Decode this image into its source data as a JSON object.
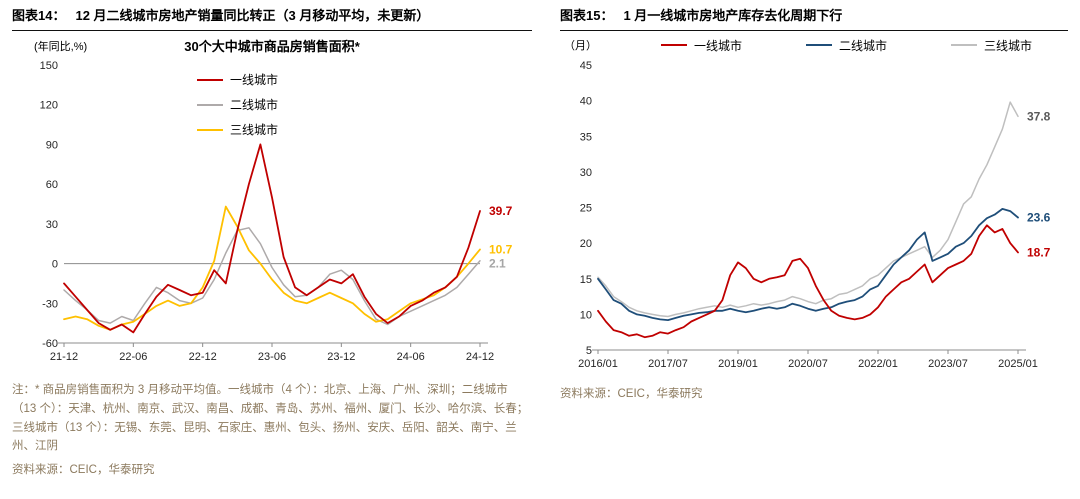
{
  "figure14": {
    "header_label": "图表14：",
    "header_title": "12 月二线城市房地产销量同比转正（3 月移动平均，未更新）",
    "note": "注：* 商品房销售面积为 3 月移动平均值。一线城市（4 个）：北京、上海、广州、深圳；二线城市（13 个）：天津、杭州、南京、武汉、南昌、成都、青岛、苏州、福州、厦门、长沙、哈尔滨、长春；三线城市（13 个）：无锡、东莞、昆明、石家庄、惠州、包头、扬州、安庆、岳阳、韶关、南宁、兰州、江阴",
    "source": "资料来源：CEIC，华泰研究"
  },
  "figure15": {
    "header_label": "图表15：",
    "header_title": "1 月一线城市房地产库存去化周期下行",
    "source": "资料来源：CEIC，华泰研究"
  },
  "colors": {
    "tier1_red": "#C00000",
    "tier2_gray_left": "#AEAAAA",
    "tier3_yellow": "#FFC000",
    "tier2_blue_right": "#1F4E79",
    "tier3_gray_right": "#BFBFBF",
    "axis_gray": "#8C8C8C",
    "note_brown": "#8C7A5E"
  },
  "chart_data": [
    {
      "type": "line",
      "title": "30个大中城市商品房销售面积*",
      "xlabel": "",
      "ylabel": "(年同比,%)",
      "ylim": [
        -60,
        150
      ],
      "yticks": [
        150,
        120,
        90,
        60,
        30,
        0,
        -30,
        -60
      ],
      "zero_line": true,
      "grid": false,
      "legend_position": "top-center-vertical",
      "x_frequency": "monthly",
      "x_range": "2021-12 to 2024-12",
      "xticks": [
        {
          "label": "21-12",
          "index": 0
        },
        {
          "label": "22-06",
          "index": 6
        },
        {
          "label": "22-12",
          "index": 12
        },
        {
          "label": "23-06",
          "index": 18
        },
        {
          "label": "23-12",
          "index": 24
        },
        {
          "label": "24-06",
          "index": 30
        },
        {
          "label": "24-12",
          "index": 36
        }
      ],
      "series": [
        {
          "name": "一线城市",
          "color": "#C00000",
          "stroke_width": 1.8,
          "draw_order": 3,
          "end_label": "39.7",
          "end_label_color": "#C00000",
          "values": [
            -15,
            -25,
            -35,
            -45,
            -50,
            -46,
            -52,
            -38,
            -25,
            -16,
            -20,
            -24,
            -22,
            -5,
            -15,
            25,
            60,
            90,
            50,
            5,
            -18,
            -24,
            -18,
            -12,
            -15,
            -8,
            -25,
            -38,
            -45,
            -40,
            -32,
            -28,
            -22,
            -18,
            -10,
            12,
            39.7
          ]
        },
        {
          "name": "二线城市",
          "color": "#AEAAAA",
          "stroke_width": 1.5,
          "draw_order": 1,
          "end_label": "2.1",
          "end_label_color": "#A6A6A6",
          "values": [
            -20,
            -28,
            -35,
            -43,
            -45,
            -40,
            -43,
            -30,
            -18,
            -22,
            -28,
            -30,
            -26,
            -12,
            8,
            25,
            27,
            15,
            -3,
            -16,
            -25,
            -24,
            -18,
            -8,
            -5,
            -12,
            -28,
            -42,
            -46,
            -40,
            -36,
            -32,
            -28,
            -24,
            -18,
            -8,
            2.1
          ]
        },
        {
          "name": "三线城市",
          "color": "#FFC000",
          "stroke_width": 1.8,
          "draw_order": 2,
          "end_label": "10.7",
          "end_label_color": "#FFC000",
          "values": [
            -42,
            -40,
            -42,
            -47,
            -50,
            -46,
            -44,
            -38,
            -32,
            -28,
            -32,
            -30,
            -18,
            2,
            43,
            28,
            10,
            0,
            -12,
            -22,
            -28,
            -30,
            -26,
            -22,
            -26,
            -30,
            -38,
            -44,
            -42,
            -36,
            -30,
            -27,
            -24,
            -18,
            -10,
            0,
            10.7
          ]
        }
      ]
    },
    {
      "type": "line",
      "title": "",
      "xlabel": "",
      "ylabel": "（月）",
      "ylim": [
        5,
        45
      ],
      "yticks": [
        45,
        40,
        35,
        30,
        25,
        20,
        15,
        10,
        5
      ],
      "zero_line": false,
      "grid": false,
      "legend_position": "top-horizontal",
      "x_frequency": "bimonthly",
      "x_range": "2016/01 to 2025/01",
      "xticks": [
        {
          "label": "2016/01",
          "index": 0
        },
        {
          "label": "2017/07",
          "index": 9
        },
        {
          "label": "2019/01",
          "index": 18
        },
        {
          "label": "2020/07",
          "index": 27
        },
        {
          "label": "2022/01",
          "index": 36
        },
        {
          "label": "2023/07",
          "index": 45
        },
        {
          "label": "2025/01",
          "index": 54
        }
      ],
      "series": [
        {
          "name": "一线城市",
          "color": "#C00000",
          "stroke_width": 1.8,
          "draw_order": 3,
          "end_label": "18.7",
          "end_label_color": "#C00000",
          "values": [
            10.5,
            9.0,
            7.8,
            7.5,
            7.0,
            7.2,
            6.8,
            7.0,
            7.5,
            7.3,
            7.8,
            8.2,
            9.0,
            9.5,
            10.0,
            10.5,
            12.0,
            15.5,
            17.3,
            16.5,
            15.0,
            14.5,
            15.0,
            15.2,
            15.5,
            17.5,
            17.8,
            16.5,
            14.0,
            12.0,
            10.5,
            9.8,
            9.5,
            9.3,
            9.5,
            10.0,
            11.0,
            12.5,
            13.5,
            14.5,
            15.0,
            16.0,
            17.0,
            14.5,
            15.5,
            16.5,
            17.0,
            17.5,
            18.5,
            21.0,
            22.5,
            21.5,
            22.0,
            20.0,
            18.7
          ]
        },
        {
          "name": "二线城市",
          "color": "#1F4E79",
          "stroke_width": 1.8,
          "draw_order": 2,
          "end_label": "23.6",
          "end_label_color": "#1F4E79",
          "values": [
            15.0,
            13.5,
            12.0,
            11.5,
            10.5,
            10.0,
            9.8,
            9.5,
            9.3,
            9.2,
            9.5,
            9.8,
            10.0,
            10.2,
            10.3,
            10.5,
            10.5,
            10.8,
            10.5,
            10.3,
            10.5,
            10.8,
            11.0,
            10.8,
            11.0,
            11.5,
            11.2,
            10.8,
            10.5,
            10.8,
            11.0,
            11.5,
            11.8,
            12.0,
            12.5,
            13.5,
            14.0,
            15.5,
            17.0,
            18.0,
            19.0,
            20.5,
            21.5,
            17.5,
            18.0,
            18.5,
            19.5,
            20.0,
            21.0,
            22.5,
            23.5,
            24.0,
            24.8,
            24.5,
            23.6
          ]
        },
        {
          "name": "三线城市",
          "color": "#BFBFBF",
          "stroke_width": 1.5,
          "draw_order": 1,
          "end_label": "37.8",
          "end_label_color": "#595959",
          "values": [
            15.2,
            14.0,
            12.5,
            11.8,
            11.0,
            10.5,
            10.2,
            10.0,
            9.8,
            9.7,
            10.0,
            10.2,
            10.5,
            10.8,
            11.0,
            11.2,
            11.0,
            11.3,
            11.0,
            11.2,
            11.5,
            11.3,
            11.5,
            11.8,
            12.0,
            12.5,
            12.2,
            11.8,
            11.5,
            12.0,
            12.2,
            12.8,
            13.0,
            13.5,
            14.0,
            15.0,
            15.5,
            16.5,
            17.5,
            18.0,
            18.5,
            19.0,
            19.5,
            18.0,
            19.0,
            20.5,
            23.0,
            25.5,
            26.5,
            29.0,
            31.0,
            33.5,
            36.0,
            39.8,
            37.8
          ]
        }
      ]
    }
  ]
}
